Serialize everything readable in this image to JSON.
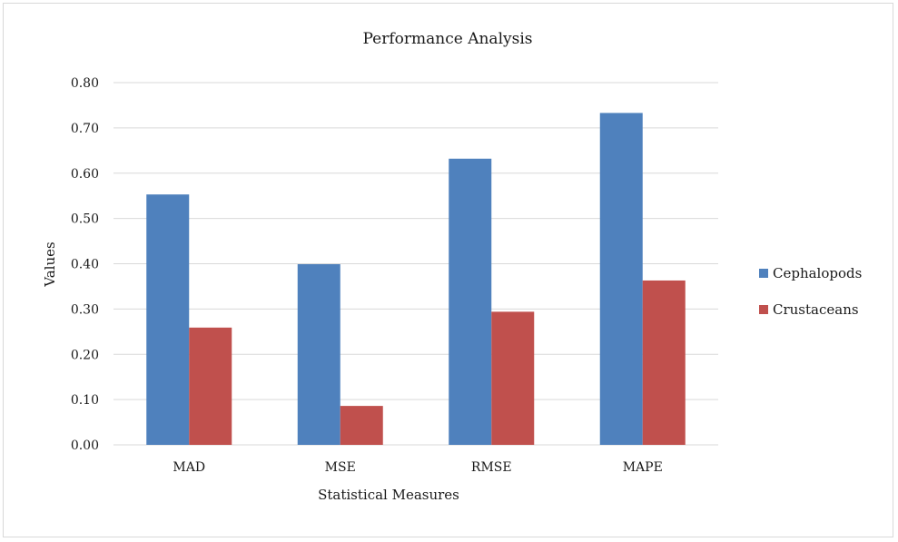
{
  "chart_data": {
    "type": "bar",
    "title": "Performance Analysis",
    "xlabel": "Statistical Measures",
    "ylabel": "Values",
    "categories": [
      "MAD",
      "MSE",
      "RMSE",
      "MAPE"
    ],
    "series": [
      {
        "name": "Cephalopods",
        "values": [
          0.553,
          0.399,
          0.632,
          0.733
        ],
        "color": "#4f81bd"
      },
      {
        "name": "Crustaceans",
        "values": [
          0.259,
          0.086,
          0.294,
          0.363
        ],
        "color": "#c0504d"
      }
    ],
    "ylim": [
      0,
      0.8
    ],
    "yticks": [
      "0.00",
      "0.10",
      "0.20",
      "0.30",
      "0.40",
      "0.50",
      "0.60",
      "0.70",
      "0.80"
    ],
    "grid": true,
    "legend_position": "right"
  }
}
